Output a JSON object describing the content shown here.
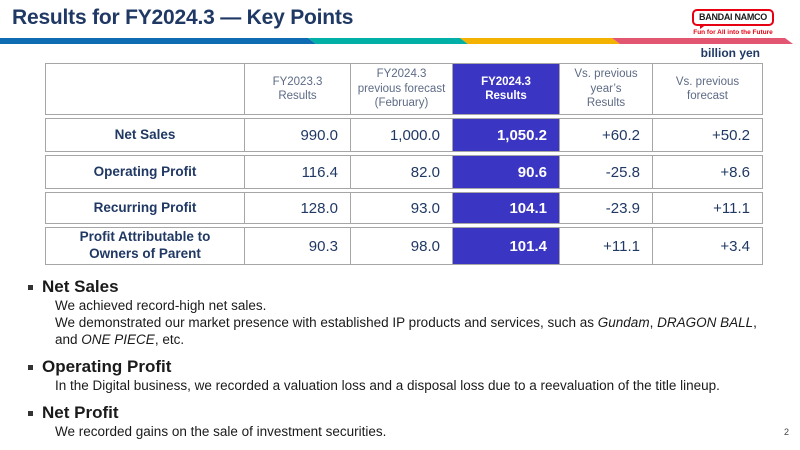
{
  "title": "Results for FY2024.3 — Key Points",
  "logo": {
    "name": "BANDAI NAMCO",
    "tagline": "Fun for All into the Future",
    "brand_red": "#e60012"
  },
  "divider_colors": {
    "blue": "#0e6db2",
    "teal": "#00b0a6",
    "yellow": "#f3b200",
    "pink": "#e35672"
  },
  "unit_label": "billion yen",
  "table": {
    "highlight_color": "#3a35c2",
    "header_bg": "#d8d8d8",
    "header": {
      "col1": "FY2023.3\nResults",
      "col2": "FY2024.3\nprevious forecast\n(February)",
      "col3": "FY2024.3\nResults",
      "col4": "Vs. previous\nyear’s\nResults",
      "col5": "Vs. previous\nforecast"
    },
    "rows": [
      {
        "label": "Net Sales",
        "c1": "990.0",
        "c2": "1,000.0",
        "c3": "1,050.2",
        "c4": "+60.2",
        "c5": "+50.2"
      },
      {
        "label": "Operating Profit",
        "c1": "116.4",
        "c2": "82.0",
        "c3": "90.6",
        "c4": "-25.8",
        "c5": "+8.6"
      },
      {
        "label": "Recurring Profit",
        "c1": "128.0",
        "c2": "93.0",
        "c3": "104.1",
        "c4": "-23.9",
        "c5": "+11.1"
      },
      {
        "label": "Profit Attributable to\nOwners of Parent",
        "c1": "90.3",
        "c2": "98.0",
        "c3": "101.4",
        "c4": "+11.1",
        "c5": "+3.4"
      }
    ]
  },
  "sections": {
    "net_sales": {
      "heading": "Net Sales",
      "line1": "We achieved record-high net sales.",
      "line2": {
        "s1": "We demonstrated our market presence with established IP products and services, such as ",
        "i1": "Gundam",
        "s2": ", ",
        "i2": "DRAGON BALL",
        "s3": ","
      },
      "line3": {
        "s1": "and ",
        "i1": "ONE PIECE",
        "s2": ", etc."
      }
    },
    "operating_profit": {
      "heading": "Operating Profit",
      "line1": "In the Digital business, we recorded a valuation loss and a disposal loss due to a reevaluation of the title lineup."
    },
    "net_profit": {
      "heading": "Net Profit",
      "line1": "We recorded gains on the sale of investment securities."
    }
  },
  "page_number": "2"
}
